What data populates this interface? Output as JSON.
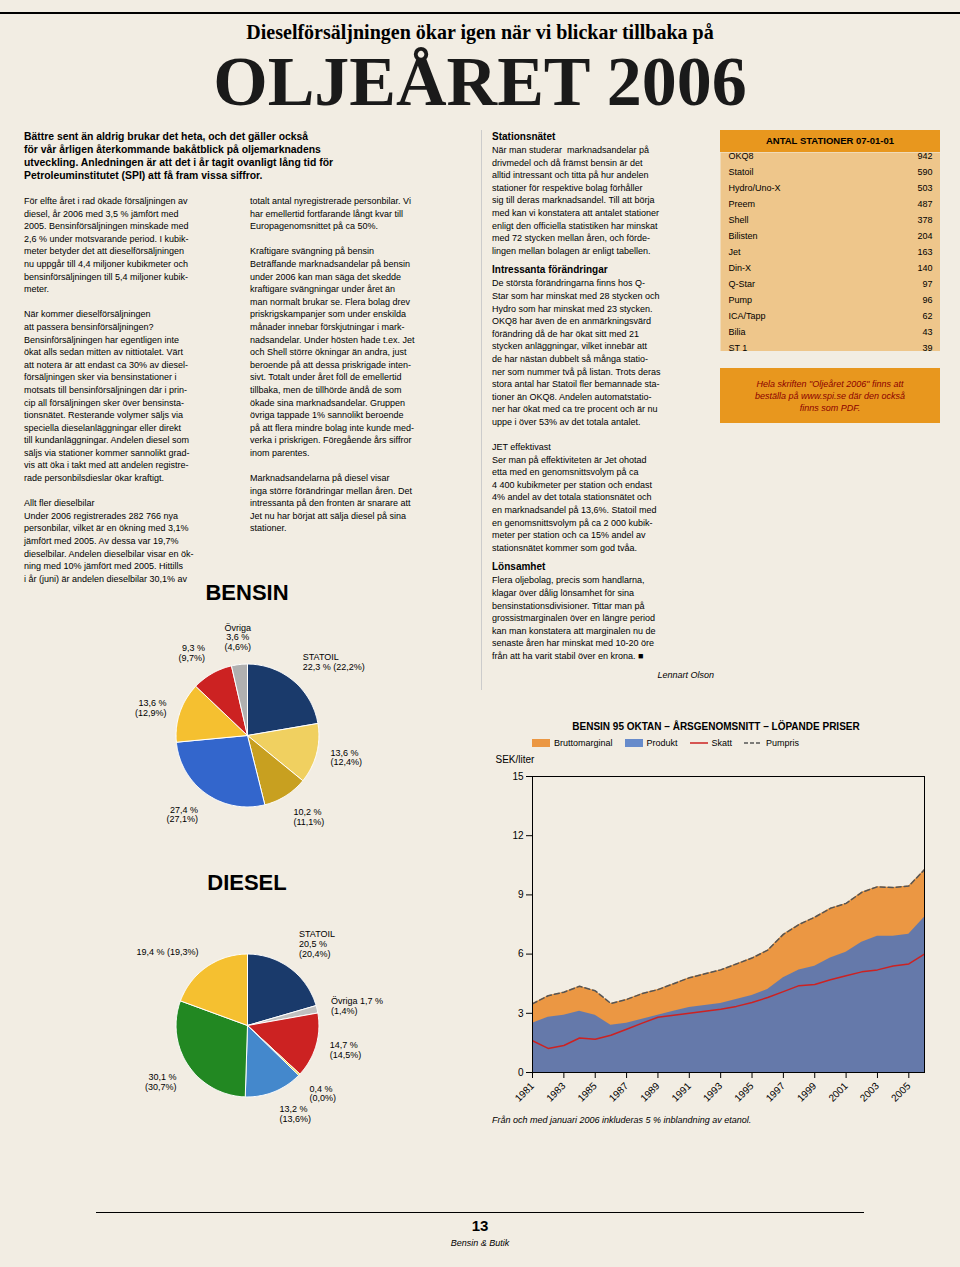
{
  "title": "OLJEÅRET 2006",
  "subtitle": "Dieselförsäljningen ökar igen när vi blickar tillbaka på",
  "annotations": [
    "Bättre sent än aldrig brukar det heta, och det gäller också\nför vår årligen återkommande bakåtblick på oljemarknadens\nutveckling. Anledningen är att det i år tagit ovanligt lång tid för\nPetroleuminstitutet (SPI) att få fram vissa siffror.",
    "För elfte året i rad ökade försäljningen av\ndiesel, år 2006 med 3,5 % jämfört med\n2005. Bensinförsäljningen minskade med\n2,6 % under motsvarande period. I kubik-\nmeter betyder det att dieselförsäljningen\nnu uppgår till 4,4 miljoner kubikmeter och\nbensinförsäljningen till 5,4 miljoner kubik-\nmeter.\n\nNär kommer dieselförsäljningen\natt passera bensinförsäljningen?\nBensinförsäljningen har egentligen inte\nökat alls sedan mitten av nittiotalet. Värt\natt notera är att endast ca 30% av diesel-\nförsäljningen sker via bensinstationer i\nmotsats till bensinförsäljningen där i prin-\ncip all försäljningen sker över bensinsta-\ntionsnätet. Resterande volymer säljs via\nspeciella dieselanläggningar eller direkt\ntill kundanläggningar. Andelen diesel som\nsäljs via stationer kommer sannolikt grad-\nvis att öka i takt med att andelen registre-\nrade personbilsdieslar ökar kraftigt.\n\nAllt fler dieselbilar\nUnder 2006 registrerades 282 766 nya\npersonbilar, vilket är en ökning med 3,1%\njämfört med 2005. Av dessa var 19,7%\ndieselbilar. Andelen dieselbilar visar en ök-\nning med 10% jämfört med 2005. Hittills\ni år (juni) är andelen dieselbilar 30,1% av",
    "totalt antal nyregistrerade personbilar. Vi\nhar emellertid fortfarande långt kvar till\nEuropagenomsnittet på ca 50%.\n\nKraftigare svängning på bensin\nBeträffande marknadsandelar på bensin\nunder 2006 kan man säga det skedde\nkraftigare svängningar under året än\nman normalt brukar se. Flera bolag drev\npriskrigskampanjer som under enskilda\nmånader innebar förskjutningar i mark-\nnadsandelar. Under hösten hade t.ex. Jet\noch Shell större ökningar än andra, just\nberoende på att dessa priskrigade inten-\nsivt. Totalt under året föll de emellertid\ntillbaka, men de tillhörde ändå de som\nökade sina marknadsandelar. Gruppen\növriga tappade 1% sannolikt beroende\npå att flera mindre bolag inte kunde med-\nverka i priskrigen. Föregående års siffror\ninom parentes.\n\nMarknadsandelarna på diesel visar\ninga större förändringar mellan åren. Det\nintressanta på den fronten är snarare att\nJet nu har börjat att sälja diesel på sina\nstationer.",
    "Stationsnätet",
    "När man studerar  marknadsandelar på\ndrivmedel och då främst bensin är det\nalltid intressant och titta på hur andelen\nstationer för respektive bolag förhåller\nsig till deras marknadsandel. Till att börja\nmed kan vi konstatera att antalet stationer\nenligt den officiella statistiken har minskat\nmed 72 stycken mellan åren, och förde-\nlingen mellan bolagen är enligt tabellen.",
    "Intressanta förändringar",
    "De största förändringarna finns hos Q-\nStar som har minskat med 28 stycken och\nHydro som har minskat med 23 stycken.\nOKQ8 har även de en anmärkningsvärd\nförändring då de har ökat sitt med 21\nstycken anläggningar, vilket innebär att\nde har nästan dubbelt så många statio-\nner som nummer två på listan. Trots deras\nstora antal har Statoil fler bemannade sta-\ntioner än OKQ8. Andelen automatstatio-\nner har ökat med ca tre procent och är nu\nuppe i över 53% av det totala antalet.\n\nJET effektivast\nSer man på effektiviteten är Jet ohotad\netta med en genomsnittsvolym på ca\n4 400 kubikmeter per station och endast\n4% andel av det totala stationsnätet och\nen marknadsandel på 13,6%. Statoil med\nen genomsnittsvolym på ca 2 000 kubik-\nmeter per station och ca 15% andel av\nstationsnätet kommer som god tvåa.",
    "Lönsamhet",
    "Flera oljebolag, precis som handlarna,\nklagar över dålig lönsamhet för sina\nbensinstationsdivisioner. Tittar man på\ngrossistmarginalen över en längre period\nkan man konstatera att marginalen nu de\nsenaste åren har minskat med 10-20 öre\nfrån att ha varit stabil över en krona. ■",
    "Lennart Olson",
    "Hela skriften \"Oljeåret 2006\" finns att\nbeställa på www.spi.se där den också\nfinns som PDF.",
    "13",
    "Bensin & Butik"
  ],
  "chart_data": [
    {
      "type": "table",
      "title": "ANTAL STATIONER 07-01-01",
      "categories": [
        "OKQ8",
        "Statoil",
        "Hydro/Uno-X",
        "Preem",
        "Shell",
        "Bilisten",
        "Jet",
        "Din-X",
        "Q-Star",
        "Pump",
        "ICA/Tapp",
        "Bilia",
        "ST 1"
      ],
      "values": [
        942,
        590,
        503,
        487,
        378,
        204,
        163,
        140,
        97,
        96,
        62,
        43,
        39
      ],
      "color": "#e8971e"
    },
    {
      "type": "pie",
      "title": "BENSIN",
      "categories": [
        "STATOIL",
        null,
        null,
        null,
        null,
        null,
        null
      ],
      "values": [
        22.3,
        13.6,
        10.2,
        27.4,
        13.6,
        9.3,
        3.6
      ],
      "value_labels": [
        "22,3 % (22,2%)",
        "13,6 %\n(12,4%)",
        "10,2 %\n(11,1%)",
        "27,4 %\n(27,1%)",
        "13,6 %\n(12,9%)",
        "9,3 %\n(9,7%)",
        "Övriga\n3,6 %\n(4,6%)"
      ],
      "colors": [
        "#1a3a6b",
        "#f0d060",
        "#c8a020",
        "#3366cc",
        "#f5c030",
        "#cc2222",
        "#b0b0b0"
      ],
      "data_labels": true
    },
    {
      "type": "pie",
      "title": "DIESEL",
      "categories": [
        "STATOIL",
        null,
        null,
        null,
        null,
        null,
        null
      ],
      "values": [
        20.5,
        1.7,
        14.7,
        0.4,
        13.2,
        30.1,
        19.4
      ],
      "value_labels": [
        "20,5 %\n(20,4%)",
        "Övriga 1,7 %\n(1,4%)",
        "14,7 %\n(14,5%)",
        "0,4 %\n(0,0%)",
        "13,2 %\n(13,6%)",
        "30,1 %\n(30,7%)",
        "19,4 % (19,3%)"
      ],
      "colors": [
        "#1a3a6b",
        "#c0c0c0",
        "#cc2222",
        "#f0d030",
        "#4488cc",
        "#228822",
        "#f5c030"
      ],
      "data_labels": true
    },
    {
      "type": "line",
      "title": "BENSIN 95 OKTAN – ÅRSGENOMSNITT – LÖPANDE PRISER",
      "ylabel": "SEK/liter",
      "x": [
        1981,
        1982,
        1983,
        1984,
        1985,
        1986,
        1987,
        1988,
        1989,
        1990,
        1991,
        1992,
        1993,
        1994,
        1995,
        1996,
        1997,
        1998,
        1999,
        2000,
        2001,
        2002,
        2003,
        2004,
        2005,
        2006
      ],
      "series": [
        {
          "name": "Bruttomarginal",
          "type": "area",
          "color": "#e8811a",
          "values": [
            3.48,
            3.89,
            4.07,
            4.37,
            4.14,
            3.5,
            3.7,
            4.0,
            4.2,
            4.5,
            4.8,
            5.0,
            5.2,
            5.5,
            5.8,
            6.2,
            7.0,
            7.5,
            7.87,
            8.32,
            8.57,
            9.13,
            9.41,
            9.37,
            9.45,
            10.28
          ]
        },
        {
          "name": "Produkt",
          "type": "area",
          "color": "#4472c4",
          "values": [
            2.5,
            2.8,
            2.9,
            3.1,
            2.9,
            2.4,
            2.5,
            2.7,
            2.9,
            3.1,
            3.3,
            3.4,
            3.5,
            3.7,
            3.9,
            4.2,
            4.8,
            5.2,
            5.39,
            5.8,
            6.1,
            6.6,
            6.9,
            6.9,
            7.0,
            7.87
          ]
        },
        {
          "name": "Skatt",
          "type": "line",
          "color": "#cc2222",
          "line_style": "solid",
          "values": [
            1.61,
            1.22,
            1.37,
            1.75,
            1.69,
            1.89,
            2.19,
            2.5,
            2.8,
            2.9,
            3.0,
            3.1,
            3.2,
            3.35,
            3.55,
            3.8,
            4.1,
            4.4,
            4.46,
            4.7,
            4.9,
            5.1,
            5.2,
            5.4,
            5.5,
            6.0
          ]
        },
        {
          "name": "Pumpris",
          "type": "line",
          "color": "#555555",
          "line_style": "dashed",
          "values": [
            3.48,
            3.89,
            4.07,
            4.37,
            4.14,
            3.5,
            3.7,
            4.0,
            4.2,
            4.5,
            4.8,
            5.0,
            5.2,
            5.5,
            5.8,
            6.2,
            7.0,
            7.5,
            7.87,
            8.32,
            8.57,
            9.13,
            9.41,
            9.37,
            9.45,
            10.28
          ]
        }
      ],
      "xlim": [
        1981,
        2006
      ],
      "ylim": [
        0,
        15
      ],
      "xticks": [
        1981,
        1983,
        1985,
        1987,
        1989,
        1991,
        1993,
        1995,
        1997,
        1999,
        2001,
        2003,
        2005
      ],
      "yticks": [
        0,
        3,
        6,
        9,
        12,
        15
      ],
      "grid": false,
      "legend": "upper left",
      "annotations": [
        "Från och med januari 2006 inkluderas 5 % inblandning av etanol."
      ]
    }
  ]
}
